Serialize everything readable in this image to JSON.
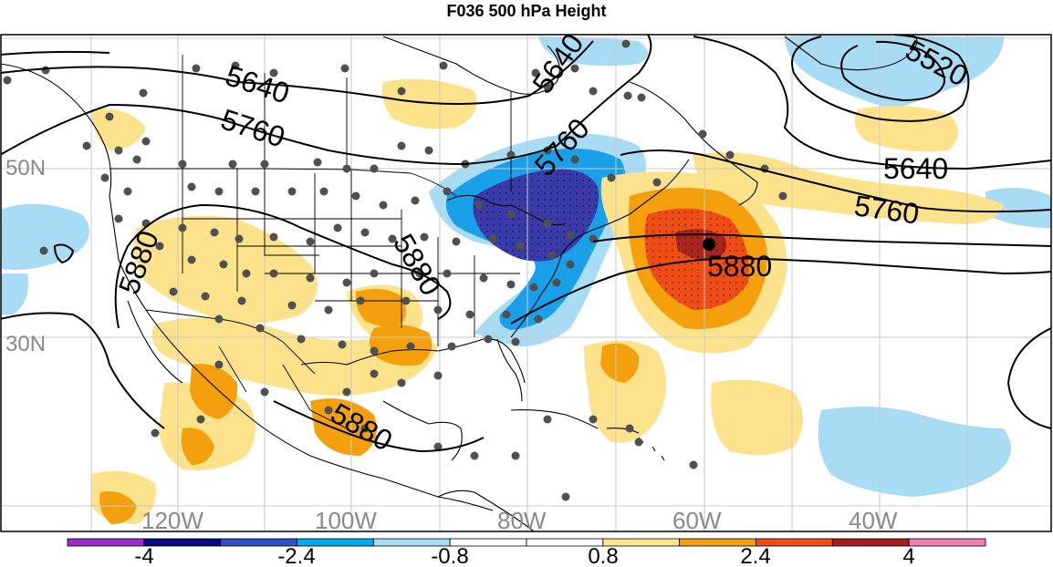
{
  "title": "F036 500 hPa Height",
  "longitude_labels": [
    "120W",
    "100W",
    "80W",
    "60W",
    "40W"
  ],
  "latitude_labels": [
    "50N",
    "30N"
  ],
  "contour_labels": [
    "5520",
    "5640",
    "5640",
    "5640",
    "5760",
    "5760",
    "5760",
    "5880",
    "5880",
    "5880",
    "5880"
  ],
  "colorbar": {
    "tick_labels": [
      "-4",
      "-2.4",
      "-0.8",
      "0.8",
      "2.4",
      "4"
    ],
    "colors": [
      "#9b30c9",
      "#0a0a82",
      "#3050c8",
      "#00aaf0",
      "#a8dcf5",
      "#ffffff",
      "#ffffff",
      "#fce28a",
      "#f4a00c",
      "#f04e14",
      "#a81c1c",
      "#f080b0"
    ]
  },
  "colors": {
    "neg_strong": "#3a3aa8",
    "neg_mid": "#1aa0e8",
    "neg_light": "#a8dcf5",
    "pos_light": "#fce28a",
    "pos_mid": "#f4a00c",
    "pos_strong": "#ef4d14",
    "pos_max": "#a8241c",
    "station_dot": "#505050",
    "contour_line": "#000000",
    "grid_line": "#c8c8c8"
  }
}
